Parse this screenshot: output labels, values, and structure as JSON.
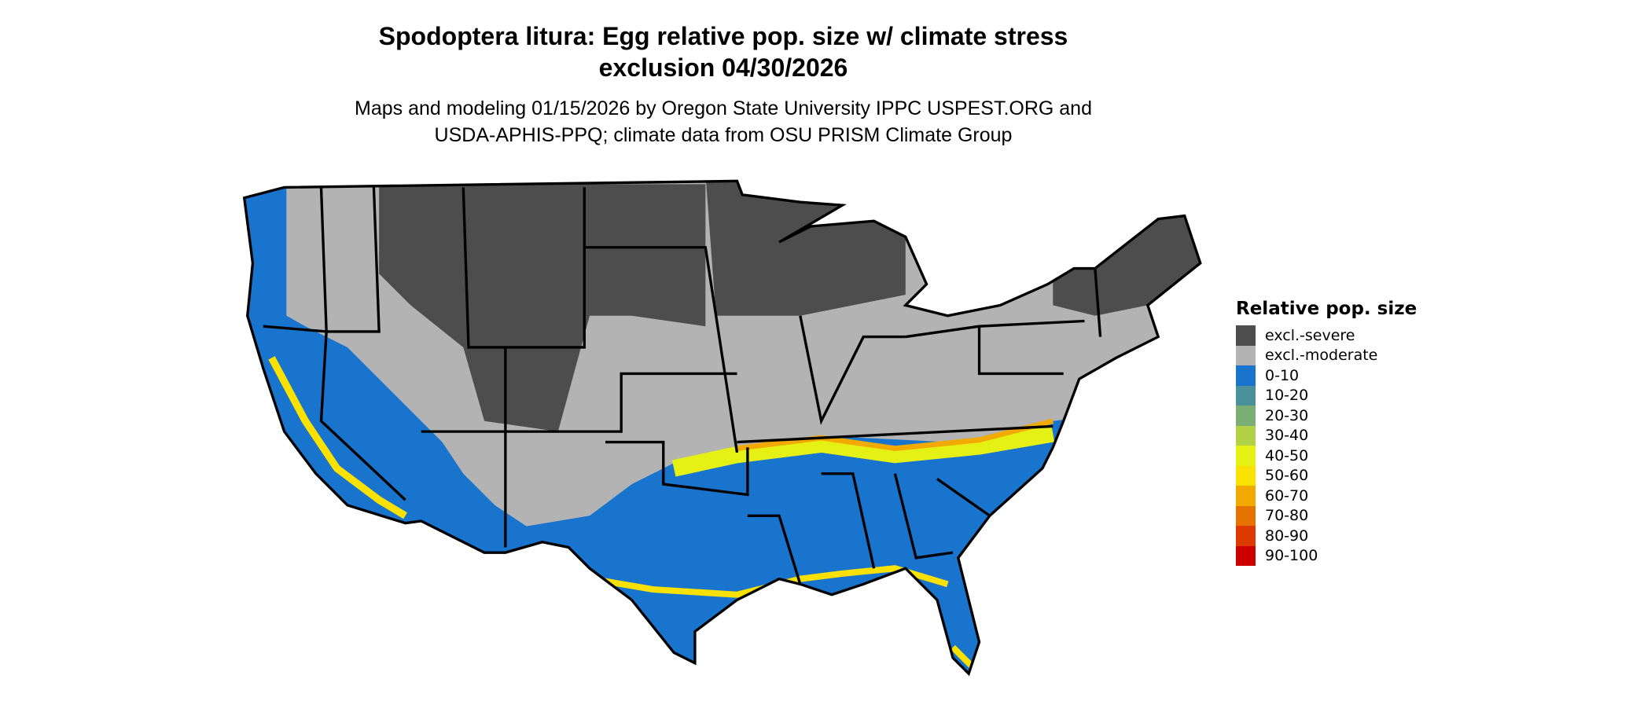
{
  "title": {
    "line1": "Spodoptera litura: Egg relative pop. size w/ climate stress",
    "line2": "exclusion 04/30/2026"
  },
  "subtitle": {
    "line1": "Maps and modeling 01/15/2026 by Oregon State University IPPC USPEST.ORG and",
    "line2": "USDA-APHIS-PPQ; climate data from OSU PRISM Climate Group"
  },
  "legend": {
    "title": "Relative pop. size",
    "items": [
      {
        "label": "excl.-severe",
        "color": "#4d4d4d"
      },
      {
        "label": "excl.-moderate",
        "color": "#b3b3b3"
      },
      {
        "label": "0-10",
        "color": "#1874cd"
      },
      {
        "label": "10-20",
        "color": "#4a919b"
      },
      {
        "label": "20-30",
        "color": "#7bae74"
      },
      {
        "label": "30-40",
        "color": "#b2d147"
      },
      {
        "label": "40-50",
        "color": "#e5f015"
      },
      {
        "label": "50-60",
        "color": "#fae100"
      },
      {
        "label": "60-70",
        "color": "#f2a900"
      },
      {
        "label": "70-80",
        "color": "#e67300"
      },
      {
        "label": "80-90",
        "color": "#dc3a00"
      },
      {
        "label": "90-100",
        "color": "#cd0000"
      }
    ]
  },
  "map": {
    "region": "Contiguous United States",
    "borders": "state"
  }
}
